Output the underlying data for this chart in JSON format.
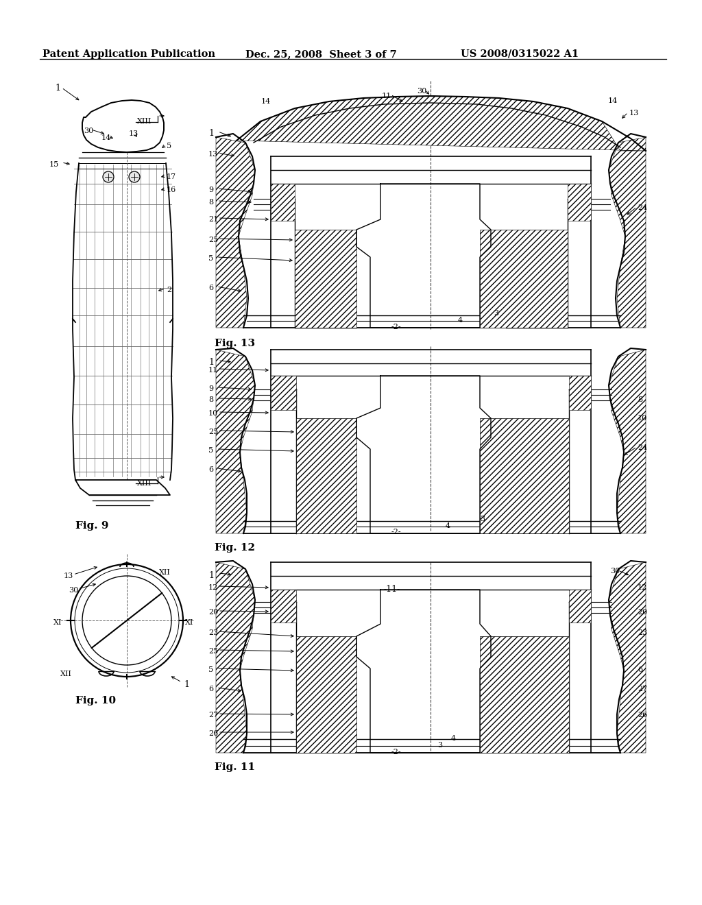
{
  "background_color": "#ffffff",
  "header_left": "Patent Application Publication",
  "header_center": "Dec. 25, 2008  Sheet 3 of 7",
  "header_right": "US 2008/0315022 A1",
  "header_fontsize": 10.5,
  "fig9_label": "Fig. 9",
  "fig10_label": "Fig. 10",
  "fig11_label": "Fig. 11",
  "fig12_label": "Fig. 12",
  "fig13_label": "Fig. 13"
}
